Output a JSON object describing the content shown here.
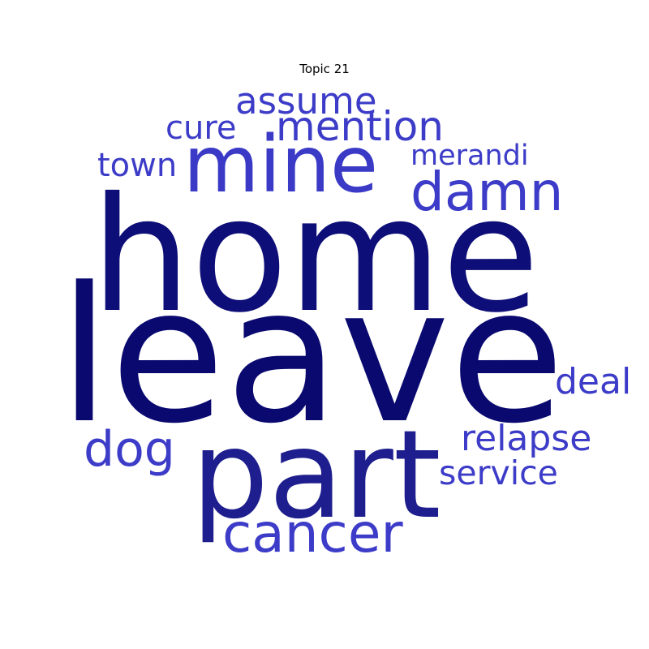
{
  "title": "Topic 21",
  "colors": {
    "dark": "#0b0b78",
    "darker": "#090970",
    "mid": "#1c1c8c",
    "light": "#3c3cc8"
  },
  "words": [
    {
      "id": "leave",
      "text": "leave",
      "color": "#090970"
    },
    {
      "id": "home",
      "text": "home",
      "color": "#0e0e78"
    },
    {
      "id": "part",
      "text": "part",
      "color": "#1e1e8e"
    },
    {
      "id": "mine",
      "text": "mine",
      "color": "#3a3ac6"
    },
    {
      "id": "damn",
      "text": "damn",
      "color": "#3c3cc8"
    },
    {
      "id": "cancer",
      "text": "cancer",
      "color": "#3c3cc8"
    },
    {
      "id": "mention",
      "text": "mention",
      "color": "#3c3cc8"
    },
    {
      "id": "assume",
      "text": "assume",
      "color": "#3c3cc8"
    },
    {
      "id": "cure",
      "text": "cure",
      "color": "#3c3cc8"
    },
    {
      "id": "merandi",
      "text": "merandi",
      "color": "#3c3cc8"
    },
    {
      "id": "town",
      "text": "town",
      "color": "#3c3cc8"
    },
    {
      "id": "dog",
      "text": "dog",
      "color": "#3c3cc8"
    },
    {
      "id": "deal",
      "text": "deal",
      "color": "#3c3cc8"
    },
    {
      "id": "relapse",
      "text": "relapse",
      "color": "#3c3cc8"
    },
    {
      "id": "service",
      "text": "service",
      "color": "#3c3cc8"
    }
  ]
}
